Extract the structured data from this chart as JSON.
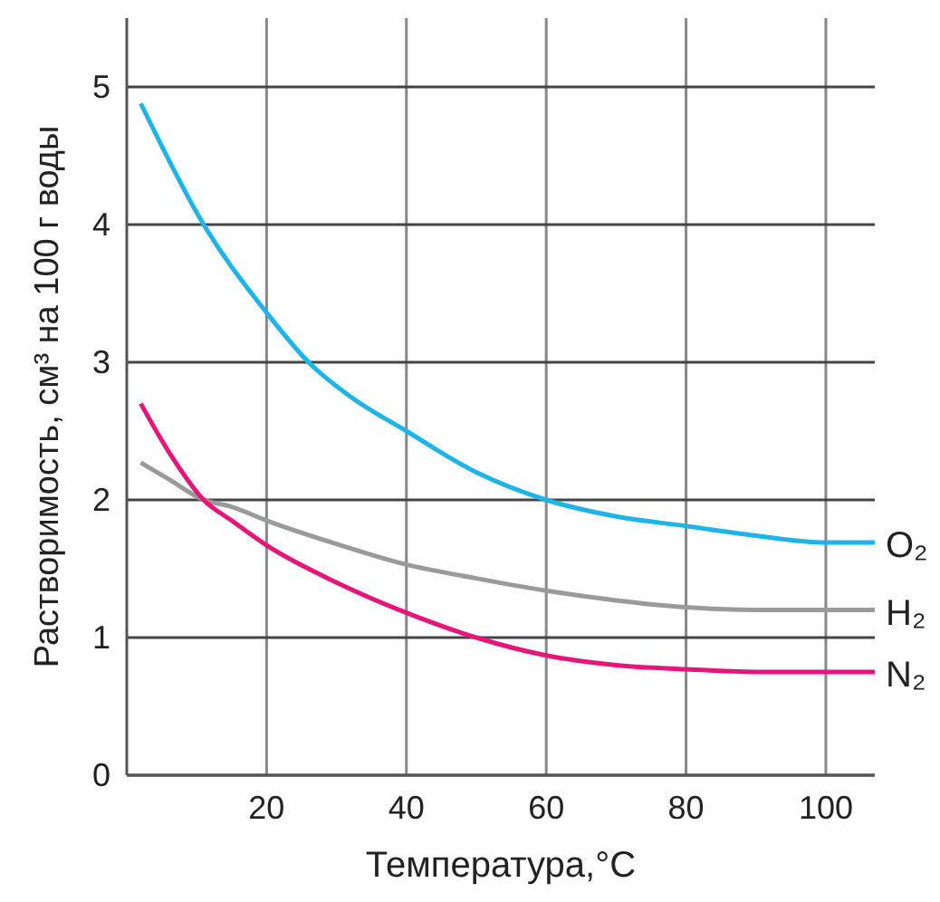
{
  "chart_data": {
    "type": "line",
    "xlabel": "Температура,°C",
    "ylabel": "Растворимость, см³ на 100 г воды",
    "xlim": [
      0,
      107
    ],
    "ylim": [
      0,
      5.5
    ],
    "xticks": [
      20,
      40,
      60,
      80,
      100
    ],
    "yticks": [
      0,
      1,
      2,
      3,
      4,
      5
    ],
    "grid": true,
    "marker": "none",
    "line_style": "solid",
    "series": [
      {
        "name": "O₂",
        "color": "#1fb4e8",
        "x": [
          2,
          11,
          20,
          26,
          32,
          40,
          50,
          60,
          70,
          80,
          90,
          100,
          107
        ],
        "values": [
          4.88,
          4.0,
          3.36,
          3.0,
          2.75,
          2.5,
          2.2,
          2.0,
          1.88,
          1.81,
          1.74,
          1.69,
          1.69
        ]
      },
      {
        "name": "H₂",
        "color": "#9a9a9a",
        "x": [
          2,
          6,
          11,
          15,
          20,
          30,
          40,
          50,
          60,
          70,
          80,
          90,
          100,
          107
        ],
        "values": [
          2.27,
          2.15,
          2.0,
          1.95,
          1.85,
          1.68,
          1.53,
          1.43,
          1.34,
          1.27,
          1.22,
          1.2,
          1.2,
          1.2
        ]
      },
      {
        "name": "N₂",
        "color": "#e5157a",
        "x": [
          2,
          6,
          11,
          15,
          20,
          30,
          40,
          50,
          60,
          70,
          80,
          90,
          100,
          107
        ],
        "values": [
          2.7,
          2.35,
          2.0,
          1.85,
          1.67,
          1.4,
          1.18,
          1.0,
          0.87,
          0.8,
          0.77,
          0.75,
          0.75,
          0.75
        ]
      }
    ]
  }
}
